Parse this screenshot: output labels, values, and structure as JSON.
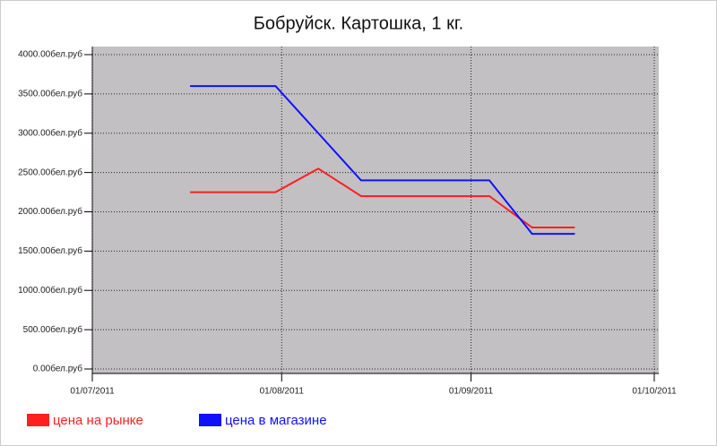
{
  "chart_data": {
    "type": "line",
    "title": "Бобруйск. Картошка, 1 кг.",
    "x": [
      "17/07/2011",
      "31/07/2011",
      "07/08/2011",
      "14/08/2011",
      "04/09/2011",
      "11/09/2011",
      "18/09/2011"
    ],
    "series": [
      {
        "name": "цена на рынке",
        "color": "#ff2020",
        "values": [
          2250,
          2250,
          2550,
          2200,
          2200,
          1800,
          1800
        ]
      },
      {
        "name": "цена в магазине",
        "color": "#1010ff",
        "values": [
          3600,
          3600,
          3000,
          2400,
          2400,
          1720,
          1720
        ]
      }
    ],
    "xlim": [
      "01/07/2011",
      "01/10/2011"
    ],
    "xticks": [
      "01/07/2011",
      "01/08/2011",
      "01/09/2011",
      "01/10/2011"
    ],
    "ylim": [
      0,
      4000
    ],
    "yticks": [
      {
        "value": 0,
        "label": "0.00бел.руб"
      },
      {
        "value": 500,
        "label": "500.00бел.руб"
      },
      {
        "value": 1000,
        "label": "1000.00бел.руб"
      },
      {
        "value": 1500,
        "label": "1500.00бел.руб"
      },
      {
        "value": 2000,
        "label": "2000.00бел.руб"
      },
      {
        "value": 2500,
        "label": "2500.00бел.руб"
      },
      {
        "value": 3000,
        "label": "3000.00бел.руб"
      },
      {
        "value": 3500,
        "label": "3500.00бел.руб"
      },
      {
        "value": 4000,
        "label": "4000.00бел.руб"
      }
    ],
    "grid": true,
    "legend": "bottom"
  }
}
